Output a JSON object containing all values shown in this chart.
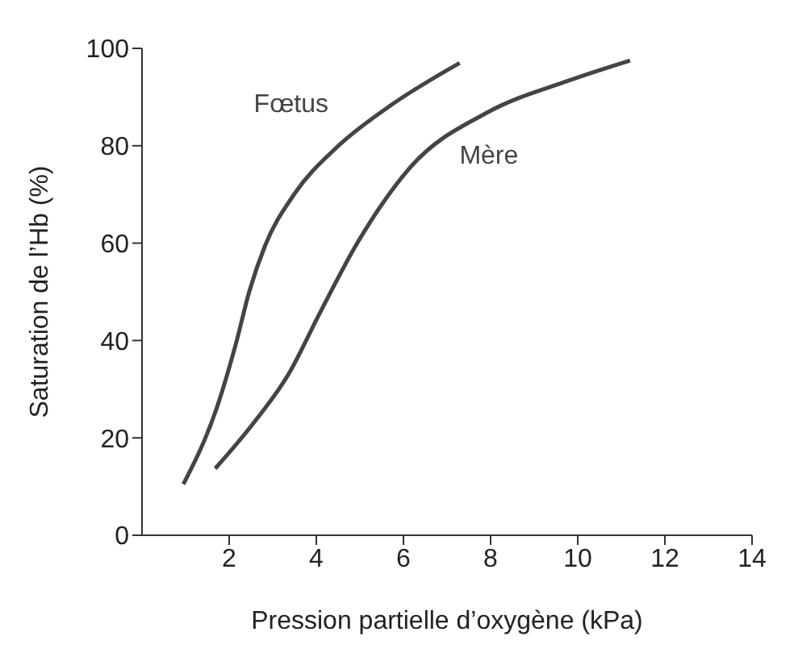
{
  "chart_data": {
    "type": "line",
    "xlabel": "Pression partielle d’oxygène (kPa)",
    "ylabel": "Saturation de l’Hb (%)",
    "xlim": [
      0,
      14
    ],
    "xticks": [
      2,
      4,
      6,
      8,
      10,
      12,
      14
    ],
    "ylim": [
      0,
      100
    ],
    "yticks": [
      0,
      20,
      40,
      60,
      80,
      100
    ],
    "grid": false,
    "legend": false,
    "marker": "none",
    "line_style": "solid",
    "series": [
      {
        "name": "Fœtus",
        "color": "#444444",
        "x": [
          0.95,
          1.74,
          2.16,
          2.46,
          2.83,
          3.49,
          4.46,
          5.66,
          7.29
        ],
        "values": [
          10.5,
          26.8,
          39.5,
          50,
          59.6,
          70,
          79.6,
          88,
          97
        ]
      },
      {
        "name": "Mère",
        "color": "#444444",
        "x": [
          1.68,
          2.52,
          3.37,
          4.09,
          4.94,
          6.14,
          7.96,
          9.77,
          11.2
        ],
        "values": [
          13.7,
          22.6,
          33.2,
          45.8,
          60,
          75.4,
          87,
          93.3,
          97.5
        ]
      }
    ]
  }
}
